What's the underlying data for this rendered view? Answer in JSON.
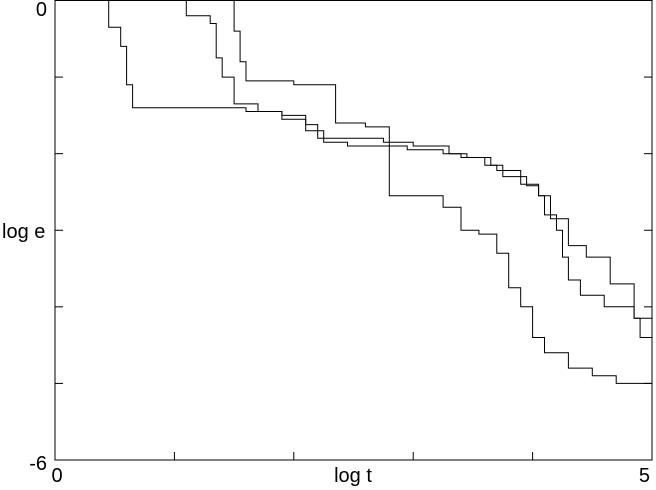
{
  "chart_data": {
    "type": "line",
    "title": "",
    "xlabel": "log t",
    "ylabel": "log e",
    "xlim": [
      0,
      5
    ],
    "ylim": [
      -6,
      0
    ],
    "grid": false,
    "legend": "none",
    "x_tick_values": [
      0,
      1,
      2,
      3,
      4,
      5
    ],
    "y_tick_values": [
      0,
      -1,
      -2,
      -3,
      -4,
      -5,
      -6
    ],
    "x_tick_labels": [
      "0",
      "",
      "",
      "",
      "",
      "5"
    ],
    "y_tick_labels": [
      "0",
      "",
      "",
      "",
      "",
      "",
      "-6"
    ],
    "colors": {
      "line": "#000000",
      "axis": "#000000",
      "background": "#ffffff"
    },
    "series": [
      {
        "points": [
          [
            0.3,
            0.05
          ],
          [
            0.45,
            -0.35
          ],
          [
            0.55,
            -0.6
          ],
          [
            0.6,
            -1.1
          ],
          [
            0.65,
            -1.4
          ],
          [
            1.6,
            -1.4
          ],
          [
            1.6,
            -1.45
          ],
          [
            1.9,
            -1.5
          ],
          [
            2.1,
            -1.5
          ],
          [
            2.1,
            -1.62
          ],
          [
            2.2,
            -1.62
          ],
          [
            2.2,
            -1.8
          ],
          [
            2.75,
            -1.85
          ],
          [
            3.0,
            -1.9
          ],
          [
            3.3,
            -2.0
          ],
          [
            3.4,
            -2.05
          ],
          [
            3.6,
            -2.15
          ],
          [
            3.7,
            -2.22
          ],
          [
            3.9,
            -2.3
          ],
          [
            3.95,
            -2.42
          ],
          [
            4.05,
            -2.55
          ],
          [
            4.1,
            -2.8
          ],
          [
            4.2,
            -3.0
          ],
          [
            4.25,
            -3.35
          ],
          [
            4.3,
            -3.65
          ],
          [
            4.4,
            -3.85
          ],
          [
            4.6,
            -4.0
          ],
          [
            4.85,
            -4.15
          ],
          [
            5.0,
            -4.4
          ]
        ]
      },
      {
        "points": [
          [
            1.05,
            0.05
          ],
          [
            1.1,
            -0.2
          ],
          [
            1.3,
            -0.3
          ],
          [
            1.35,
            -0.75
          ],
          [
            1.4,
            -1.0
          ],
          [
            1.5,
            -1.35
          ],
          [
            1.7,
            -1.45
          ],
          [
            1.9,
            -1.55
          ],
          [
            2.1,
            -1.55
          ],
          [
            2.1,
            -1.7
          ],
          [
            2.25,
            -1.7
          ],
          [
            2.25,
            -1.85
          ],
          [
            2.45,
            -1.9
          ],
          [
            2.65,
            -1.9
          ],
          [
            2.95,
            -1.95
          ],
          [
            3.25,
            -2.0
          ],
          [
            3.45,
            -2.05
          ],
          [
            3.65,
            -2.15
          ],
          [
            3.75,
            -2.3
          ],
          [
            3.9,
            -2.4
          ],
          [
            4.05,
            -2.55
          ],
          [
            4.15,
            -2.85
          ],
          [
            4.3,
            -3.2
          ],
          [
            4.45,
            -3.35
          ],
          [
            4.65,
            -3.7
          ],
          [
            4.85,
            -4.15
          ],
          [
            4.9,
            -4.4
          ],
          [
            5.0,
            -4.6
          ]
        ]
      },
      {
        "points": [
          [
            1.5,
            0.05
          ],
          [
            1.5,
            -0.4
          ],
          [
            1.55,
            -0.8
          ],
          [
            1.6,
            -1.05
          ],
          [
            2.0,
            -1.1
          ],
          [
            2.35,
            -1.15
          ],
          [
            2.35,
            -1.6
          ],
          [
            2.6,
            -1.65
          ],
          [
            2.8,
            -1.7
          ],
          [
            2.8,
            -2.55
          ],
          [
            3.25,
            -2.7
          ],
          [
            3.4,
            -3.0
          ],
          [
            3.55,
            -3.05
          ],
          [
            3.7,
            -3.3
          ],
          [
            3.8,
            -3.75
          ],
          [
            3.9,
            -4.0
          ],
          [
            4.0,
            -4.4
          ],
          [
            4.1,
            -4.6
          ],
          [
            4.3,
            -4.8
          ],
          [
            4.5,
            -4.9
          ],
          [
            4.7,
            -5.0
          ],
          [
            5.0,
            -5.1
          ]
        ]
      }
    ]
  }
}
